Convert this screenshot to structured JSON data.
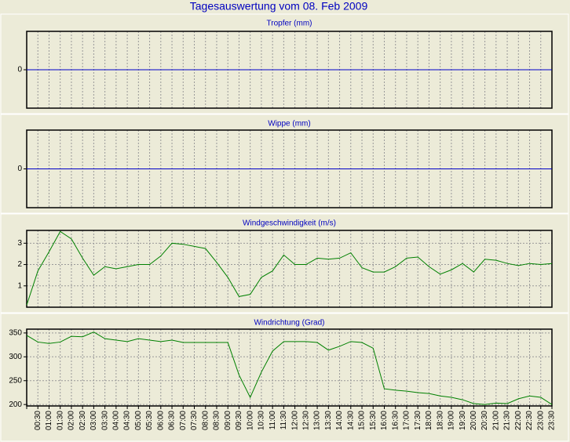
{
  "title": "Tagesauswertung vom 08. Feb 2009",
  "chart_data": [
    {
      "type": "line",
      "title": "Tropfer (mm)",
      "color": "#0000c8",
      "ylim": [
        -1,
        1
      ],
      "yticks": [
        0
      ],
      "grid": true,
      "values": [
        0,
        0,
        0,
        0,
        0,
        0,
        0,
        0,
        0,
        0,
        0,
        0,
        0,
        0,
        0,
        0,
        0,
        0,
        0,
        0,
        0,
        0,
        0,
        0,
        0,
        0,
        0,
        0,
        0,
        0,
        0,
        0,
        0,
        0,
        0,
        0,
        0,
        0,
        0,
        0,
        0,
        0,
        0,
        0,
        0,
        0,
        0,
        0
      ]
    },
    {
      "type": "line",
      "title": "Wippe (mm)",
      "color": "#0000c8",
      "ylim": [
        -1,
        1
      ],
      "yticks": [
        0
      ],
      "grid": true,
      "values": [
        0,
        0,
        0,
        0,
        0,
        0,
        0,
        0,
        0,
        0,
        0,
        0,
        0,
        0,
        0,
        0,
        0,
        0,
        0,
        0,
        0,
        0,
        0,
        0,
        0,
        0,
        0,
        0,
        0,
        0,
        0,
        0,
        0,
        0,
        0,
        0,
        0,
        0,
        0,
        0,
        0,
        0,
        0,
        0,
        0,
        0,
        0,
        0
      ]
    },
    {
      "type": "line",
      "title": "Windgeschwindigkeit (m/s)",
      "color": "#008000",
      "ylim": [
        0,
        3.6
      ],
      "yticks": [
        1,
        2,
        3
      ],
      "grid": true,
      "values": [
        0.1,
        1.7,
        2.6,
        3.55,
        3.2,
        2.3,
        1.5,
        1.9,
        1.8,
        1.9,
        2.0,
        2.0,
        2.4,
        3.0,
        2.95,
        2.85,
        2.75,
        2.1,
        1.4,
        0.5,
        0.6,
        1.4,
        1.7,
        2.45,
        2.0,
        2.0,
        2.3,
        2.25,
        2.3,
        2.55,
        1.85,
        1.65,
        1.65,
        1.9,
        2.3,
        2.35,
        1.9,
        1.55,
        1.75,
        2.05,
        1.65,
        2.25,
        2.2,
        2.05,
        1.95,
        2.05,
        2.0,
        2.05
      ]
    },
    {
      "type": "line",
      "title": "Windrichtung (Grad)",
      "color": "#008000",
      "ylim": [
        197,
        358
      ],
      "yticks": [
        200,
        250,
        300,
        350
      ],
      "grid": true,
      "categories": [
        null,
        "00:30",
        "01:00",
        "01:30",
        "02:00",
        "02:30",
        "03:00",
        "03:30",
        "04:00",
        "04:30",
        "05:00",
        "05:30",
        "06:00",
        "06:30",
        "07:00",
        "07:30",
        "08:00",
        "08:30",
        "09:00",
        "09:30",
        "10:00",
        "10:30",
        "11:00",
        "11:30",
        "12:00",
        "12:30",
        "13:00",
        "13:30",
        "14:00",
        "14:30",
        "15:00",
        "15:30",
        "16:00",
        "16:30",
        "17:00",
        "17:30",
        "18:00",
        "18:30",
        "19:00",
        "19:30",
        "20:00",
        "20:30",
        "21:00",
        "21:30",
        "22:00",
        "22:30",
        "23:00",
        "23:30"
      ],
      "values": [
        345,
        331,
        328,
        331,
        343,
        342,
        352,
        338,
        335,
        332,
        338,
        335,
        332,
        335,
        330,
        330,
        330,
        330,
        330,
        262,
        215,
        268,
        312,
        332,
        332,
        332,
        330,
        314,
        322,
        332,
        330,
        318,
        233,
        230,
        228,
        225,
        223,
        218,
        215,
        210,
        202,
        200,
        203,
        202,
        212,
        218,
        215,
        200
      ]
    }
  ]
}
